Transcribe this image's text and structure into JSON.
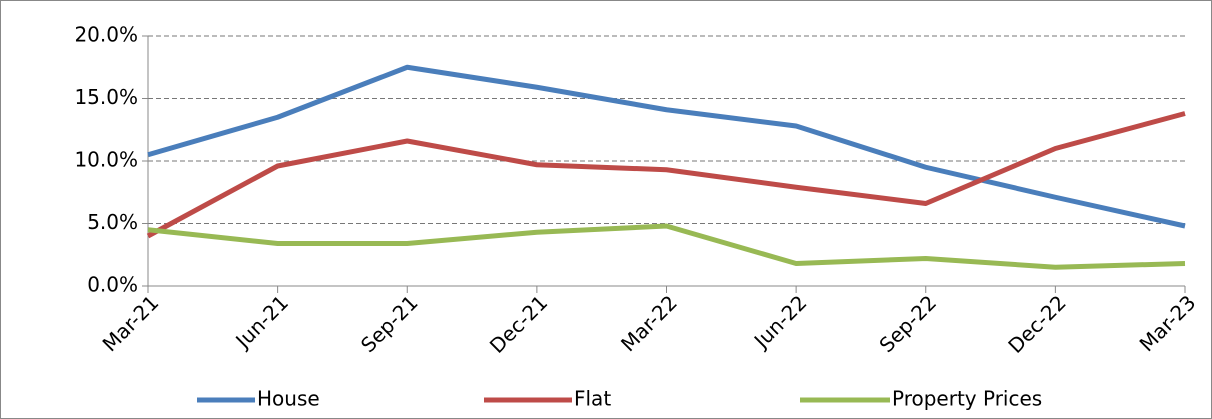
{
  "chart_data": {
    "type": "line",
    "categories": [
      "Mar-21",
      "Jun-21",
      "Sep-21",
      "Dec-21",
      "Mar-22",
      "Jun-22",
      "Sep-22",
      "Dec-22",
      "Mar-23"
    ],
    "series": [
      {
        "name": "House",
        "color": "#4a7ebb",
        "values": [
          10.5,
          13.5,
          17.5,
          15.9,
          14.1,
          12.8,
          9.5,
          7.1,
          4.8
        ]
      },
      {
        "name": "Flat",
        "color": "#be4b48",
        "values": [
          4.0,
          9.6,
          11.6,
          9.7,
          9.3,
          7.9,
          6.6,
          11.0,
          13.8
        ]
      },
      {
        "name": "Property Prices",
        "color": "#98b954",
        "values": [
          4.5,
          3.4,
          3.4,
          4.3,
          4.8,
          1.8,
          2.2,
          1.5,
          1.8
        ]
      }
    ],
    "ylim": [
      0,
      20
    ],
    "yticks": [
      {
        "value": 0,
        "label": "0.0%"
      },
      {
        "value": 5,
        "label": "5.0%"
      },
      {
        "value": 10,
        "label": "10.0%"
      },
      {
        "value": 15,
        "label": "15.0%"
      },
      {
        "value": 20,
        "label": "20.0%"
      }
    ],
    "grid": true,
    "legend": "bottom"
  }
}
